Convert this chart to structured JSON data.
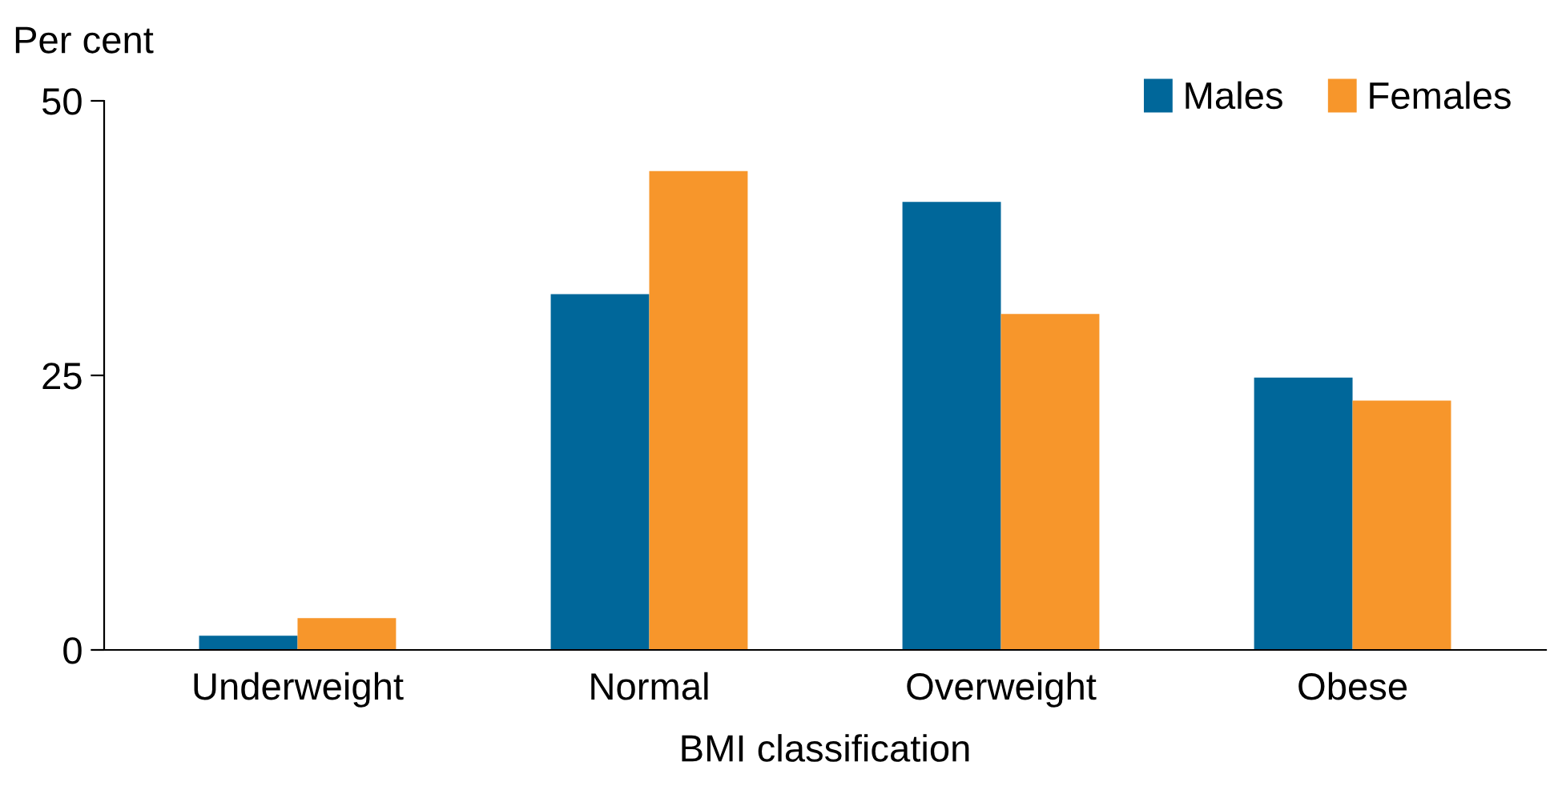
{
  "chart_data": {
    "type": "bar",
    "ylabel": "Per cent",
    "xlabel": "BMI classification",
    "categories": [
      "Underweight",
      "Normal",
      "Overweight",
      "Obese"
    ],
    "series": [
      {
        "name": "Males",
        "color": "#00679a",
        "values": [
          1.3,
          32.4,
          40.8,
          24.8
        ]
      },
      {
        "name": "Females",
        "color": "#f7962b",
        "values": [
          2.9,
          43.6,
          30.6,
          22.7
        ]
      }
    ],
    "ylim": [
      0,
      50
    ],
    "yticks": [
      0,
      25,
      50
    ],
    "grid": false,
    "legend": "top right"
  }
}
